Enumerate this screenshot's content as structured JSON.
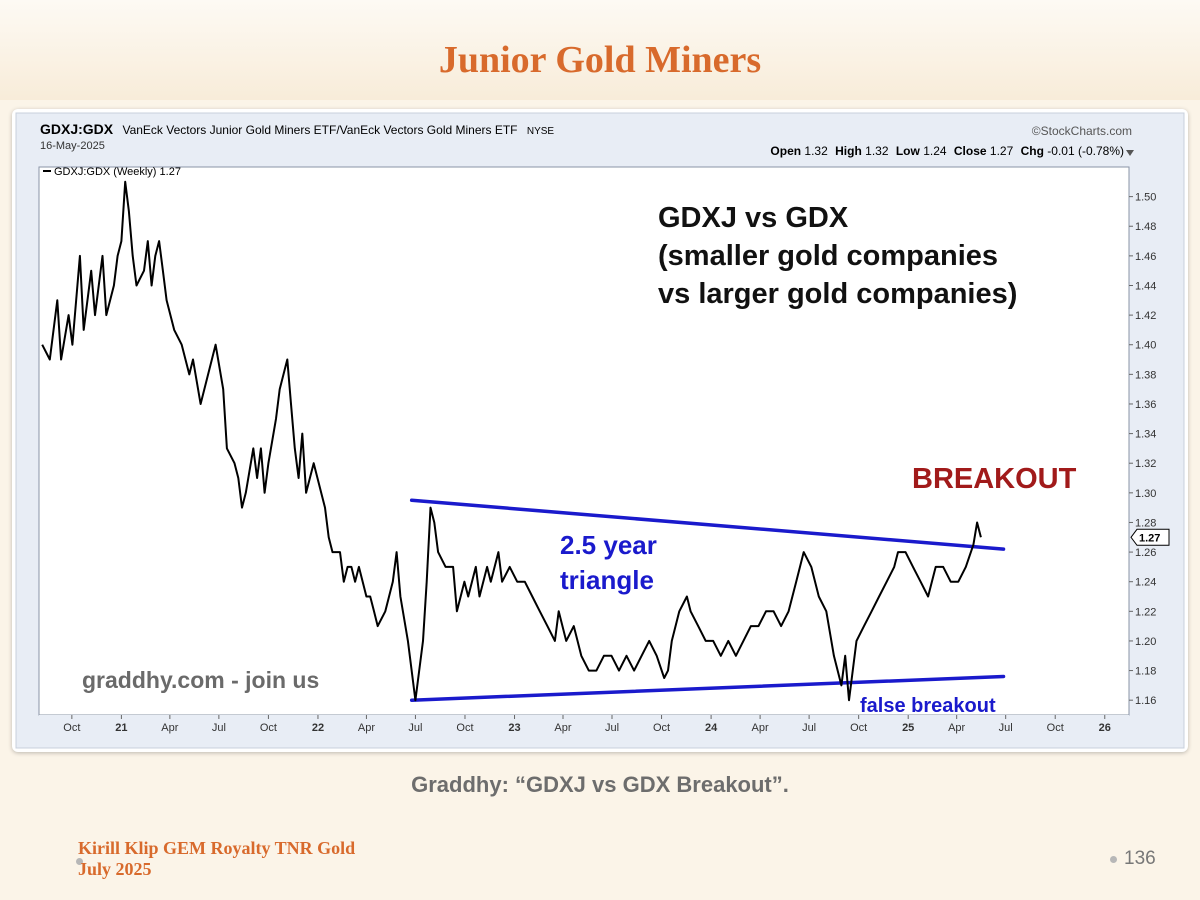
{
  "slide": {
    "title": "Junior Gold Miners",
    "caption": "Graddhy: “GDXJ vs GDX Breakout”.",
    "footer_line1": "Kirill Klip GEM Royalty TNR Gold",
    "footer_line2": "July 2025",
    "page_number": "136"
  },
  "chart_data": {
    "type": "line",
    "symbol": "GDXJ:GDX",
    "name": "VanEck Vectors Junior Gold Miners ETF/VanEck Vectors Gold Miners ETF",
    "exchange": "NYSE",
    "date": "16-May-2025",
    "source": "©StockCharts.com",
    "quote": {
      "open_label": "Open",
      "open": "1.32",
      "high_label": "High",
      "high": "1.32",
      "low_label": "Low",
      "low": "1.24",
      "close_label": "Close",
      "close": "1.27",
      "chg_label": "Chg",
      "chg": "-0.01 (-0.78%)"
    },
    "legend": "GDXJ:GDX (Weekly) 1.27",
    "last_value": "1.27",
    "ylim": [
      1.15,
      1.52
    ],
    "y_ticks": [
      "1.16",
      "1.18",
      "1.20",
      "1.22",
      "1.24",
      "1.26",
      "1.28",
      "1.30",
      "1.32",
      "1.34",
      "1.36",
      "1.38",
      "1.40",
      "1.42",
      "1.44",
      "1.46",
      "1.48",
      "1.50"
    ],
    "x_ticks": [
      {
        "label": "Oct",
        "date": "2020-10"
      },
      {
        "label": "21",
        "date": "2021-01",
        "bold": true
      },
      {
        "label": "Apr",
        "date": "2021-04"
      },
      {
        "label": "Jul",
        "date": "2021-07"
      },
      {
        "label": "Oct",
        "date": "2021-10"
      },
      {
        "label": "22",
        "date": "2022-01",
        "bold": true
      },
      {
        "label": "Apr",
        "date": "2022-04"
      },
      {
        "label": "Jul",
        "date": "2022-07"
      },
      {
        "label": "Oct",
        "date": "2022-10"
      },
      {
        "label": "23",
        "date": "2023-01",
        "bold": true
      },
      {
        "label": "Apr",
        "date": "2023-04"
      },
      {
        "label": "Jul",
        "date": "2023-07"
      },
      {
        "label": "Oct",
        "date": "2023-10"
      },
      {
        "label": "24",
        "date": "2024-01",
        "bold": true
      },
      {
        "label": "Apr",
        "date": "2024-04"
      },
      {
        "label": "Jul",
        "date": "2024-07"
      },
      {
        "label": "Oct",
        "date": "2024-10"
      },
      {
        "label": "25",
        "date": "2025-01",
        "bold": true
      },
      {
        "label": "Apr",
        "date": "2025-04"
      },
      {
        "label": "Jul",
        "date": "2025-07"
      },
      {
        "label": "Oct",
        "date": "2025-10"
      },
      {
        "label": "26",
        "date": "2026-01",
        "bold": true
      }
    ],
    "series": [
      {
        "line_color": "#000000",
        "points": [
          [
            "2020-08-07",
            1.4
          ],
          [
            "2020-08-21",
            1.39
          ],
          [
            "2020-09-04",
            1.43
          ],
          [
            "2020-09-11",
            1.39
          ],
          [
            "2020-09-25",
            1.42
          ],
          [
            "2020-10-02",
            1.4
          ],
          [
            "2020-10-16",
            1.46
          ],
          [
            "2020-10-23",
            1.41
          ],
          [
            "2020-11-06",
            1.45
          ],
          [
            "2020-11-13",
            1.42
          ],
          [
            "2020-11-27",
            1.46
          ],
          [
            "2020-12-04",
            1.42
          ],
          [
            "2020-12-18",
            1.44
          ],
          [
            "2020-12-25",
            1.46
          ],
          [
            "2021-01-01",
            1.47
          ],
          [
            "2021-01-08",
            1.51
          ],
          [
            "2021-01-15",
            1.49
          ],
          [
            "2021-01-22",
            1.46
          ],
          [
            "2021-01-29",
            1.44
          ],
          [
            "2021-02-12",
            1.45
          ],
          [
            "2021-02-19",
            1.47
          ],
          [
            "2021-02-26",
            1.44
          ],
          [
            "2021-03-05",
            1.46
          ],
          [
            "2021-03-12",
            1.47
          ],
          [
            "2021-03-19",
            1.45
          ],
          [
            "2021-03-26",
            1.43
          ],
          [
            "2021-04-09",
            1.41
          ],
          [
            "2021-04-23",
            1.4
          ],
          [
            "2021-05-07",
            1.38
          ],
          [
            "2021-05-14",
            1.39
          ],
          [
            "2021-05-28",
            1.36
          ],
          [
            "2021-06-11",
            1.38
          ],
          [
            "2021-06-25",
            1.4
          ],
          [
            "2021-07-09",
            1.37
          ],
          [
            "2021-07-16",
            1.33
          ],
          [
            "2021-07-30",
            1.32
          ],
          [
            "2021-08-06",
            1.31
          ],
          [
            "2021-08-13",
            1.29
          ],
          [
            "2021-08-20",
            1.3
          ],
          [
            "2021-09-03",
            1.33
          ],
          [
            "2021-09-10",
            1.31
          ],
          [
            "2021-09-17",
            1.33
          ],
          [
            "2021-09-24",
            1.3
          ],
          [
            "2021-10-01",
            1.32
          ],
          [
            "2021-10-15",
            1.35
          ],
          [
            "2021-10-22",
            1.37
          ],
          [
            "2021-11-05",
            1.39
          ],
          [
            "2021-11-12",
            1.36
          ],
          [
            "2021-11-19",
            1.33
          ],
          [
            "2021-11-26",
            1.31
          ],
          [
            "2021-12-03",
            1.34
          ],
          [
            "2021-12-10",
            1.3
          ],
          [
            "2021-12-24",
            1.32
          ],
          [
            "2022-01-07",
            1.3
          ],
          [
            "2022-01-14",
            1.29
          ],
          [
            "2022-01-21",
            1.27
          ],
          [
            "2022-01-28",
            1.26
          ],
          [
            "2022-02-11",
            1.26
          ],
          [
            "2022-02-18",
            1.24
          ],
          [
            "2022-02-25",
            1.25
          ],
          [
            "2022-03-04",
            1.25
          ],
          [
            "2022-03-11",
            1.24
          ],
          [
            "2022-03-18",
            1.25
          ],
          [
            "2022-04-01",
            1.23
          ],
          [
            "2022-04-08",
            1.23
          ],
          [
            "2022-04-15",
            1.22
          ],
          [
            "2022-04-22",
            1.21
          ],
          [
            "2022-05-06",
            1.22
          ],
          [
            "2022-05-20",
            1.24
          ],
          [
            "2022-05-27",
            1.26
          ],
          [
            "2022-06-03",
            1.23
          ],
          [
            "2022-06-17",
            1.2
          ],
          [
            "2022-07-01",
            1.16
          ],
          [
            "2022-07-15",
            1.2
          ],
          [
            "2022-07-22",
            1.24
          ],
          [
            "2022-07-29",
            1.29
          ],
          [
            "2022-08-05",
            1.28
          ],
          [
            "2022-08-12",
            1.26
          ],
          [
            "2022-08-26",
            1.25
          ],
          [
            "2022-09-09",
            1.25
          ],
          [
            "2022-09-16",
            1.22
          ],
          [
            "2022-09-30",
            1.24
          ],
          [
            "2022-10-07",
            1.23
          ],
          [
            "2022-10-21",
            1.25
          ],
          [
            "2022-10-28",
            1.23
          ],
          [
            "2022-11-11",
            1.25
          ],
          [
            "2022-11-18",
            1.24
          ],
          [
            "2022-12-02",
            1.26
          ],
          [
            "2022-12-09",
            1.24
          ],
          [
            "2022-12-23",
            1.25
          ],
          [
            "2023-01-06",
            1.24
          ],
          [
            "2023-01-20",
            1.24
          ],
          [
            "2023-02-03",
            1.23
          ],
          [
            "2023-02-17",
            1.22
          ],
          [
            "2023-03-03",
            1.21
          ],
          [
            "2023-03-17",
            1.2
          ],
          [
            "2023-03-24",
            1.22
          ],
          [
            "2023-04-07",
            1.2
          ],
          [
            "2023-04-21",
            1.21
          ],
          [
            "2023-05-05",
            1.19
          ],
          [
            "2023-05-19",
            1.18
          ],
          [
            "2023-06-02",
            1.18
          ],
          [
            "2023-06-16",
            1.19
          ],
          [
            "2023-06-30",
            1.19
          ],
          [
            "2023-07-14",
            1.18
          ],
          [
            "2023-07-28",
            1.19
          ],
          [
            "2023-08-11",
            1.18
          ],
          [
            "2023-08-25",
            1.19
          ],
          [
            "2023-09-08",
            1.2
          ],
          [
            "2023-09-22",
            1.19
          ],
          [
            "2023-10-06",
            1.175
          ],
          [
            "2023-10-13",
            1.18
          ],
          [
            "2023-10-20",
            1.2
          ],
          [
            "2023-11-03",
            1.22
          ],
          [
            "2023-11-17",
            1.23
          ],
          [
            "2023-11-24",
            1.22
          ],
          [
            "2023-12-08",
            1.21
          ],
          [
            "2023-12-22",
            1.2
          ],
          [
            "2024-01-05",
            1.2
          ],
          [
            "2024-01-19",
            1.19
          ],
          [
            "2024-02-02",
            1.2
          ],
          [
            "2024-02-16",
            1.19
          ],
          [
            "2024-03-01",
            1.2
          ],
          [
            "2024-03-15",
            1.21
          ],
          [
            "2024-03-29",
            1.21
          ],
          [
            "2024-04-12",
            1.22
          ],
          [
            "2024-04-26",
            1.22
          ],
          [
            "2024-05-10",
            1.21
          ],
          [
            "2024-05-24",
            1.22
          ],
          [
            "2024-06-07",
            1.24
          ],
          [
            "2024-06-21",
            1.26
          ],
          [
            "2024-07-05",
            1.25
          ],
          [
            "2024-07-19",
            1.23
          ],
          [
            "2024-08-02",
            1.22
          ],
          [
            "2024-08-16",
            1.19
          ],
          [
            "2024-08-30",
            1.17
          ],
          [
            "2024-09-06",
            1.19
          ],
          [
            "2024-09-13",
            1.16
          ],
          [
            "2024-09-27",
            1.2
          ],
          [
            "2024-10-11",
            1.21
          ],
          [
            "2024-10-25",
            1.22
          ],
          [
            "2024-11-08",
            1.23
          ],
          [
            "2024-11-22",
            1.24
          ],
          [
            "2024-12-06",
            1.25
          ],
          [
            "2024-12-13",
            1.26
          ],
          [
            "2024-12-27",
            1.26
          ],
          [
            "2025-01-10",
            1.25
          ],
          [
            "2025-01-24",
            1.24
          ],
          [
            "2025-02-07",
            1.23
          ],
          [
            "2025-02-21",
            1.25
          ],
          [
            "2025-03-07",
            1.25
          ],
          [
            "2025-03-21",
            1.24
          ],
          [
            "2025-04-04",
            1.24
          ],
          [
            "2025-04-18",
            1.25
          ],
          [
            "2025-05-02",
            1.265
          ],
          [
            "2025-05-09",
            1.28
          ],
          [
            "2025-05-16",
            1.27
          ]
        ]
      }
    ],
    "trendlines": [
      {
        "name": "upper",
        "color": "#1a1acc",
        "from": [
          "2022-06-24",
          1.295
        ],
        "to": [
          "2025-06-27",
          1.262
        ]
      },
      {
        "name": "lower",
        "color": "#1a1acc",
        "from": [
          "2022-06-24",
          1.16
        ],
        "to": [
          "2025-06-27",
          1.176
        ]
      }
    ],
    "annotations": {
      "heading_line1": "GDXJ vs GDX",
      "heading_line2": "(smaller gold companies",
      "heading_line3": "vs larger gold companies)",
      "triangle_line1": "2.5 year",
      "triangle_line2": "triangle",
      "breakout": "BREAKOUT",
      "false_breakout": "false breakout",
      "watermark": "graddhy.com - join us"
    }
  }
}
